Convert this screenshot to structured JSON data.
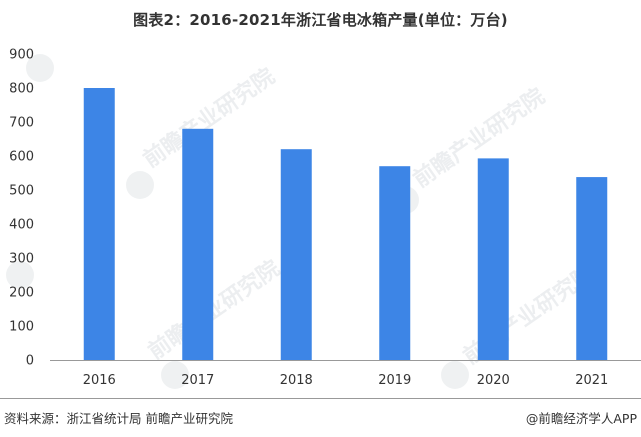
{
  "title": "图表2：2016-2021年浙江省电冰箱产量(单位：万台)",
  "source_text": "资料来源：浙江省统计局 前瞻产业研究院",
  "brand_text": "@前瞻经济学人APP",
  "watermark_text": "前瞻产业研究院",
  "colors": {
    "bar": "#3d85e6",
    "axis": "#999999",
    "text": "#333333"
  },
  "chart_data": {
    "type": "bar",
    "title": "图表2：2016-2021年浙江省电冰箱产量(单位：万台)",
    "categories": [
      "2016",
      "2017",
      "2018",
      "2019",
      "2020",
      "2021"
    ],
    "values": [
      800,
      680,
      620,
      570,
      593,
      538
    ],
    "ylim": [
      0,
      900
    ],
    "yticks": [
      0,
      100,
      200,
      300,
      400,
      500,
      600,
      700,
      800,
      900
    ],
    "grid": false,
    "xlabel": "",
    "ylabel": ""
  }
}
